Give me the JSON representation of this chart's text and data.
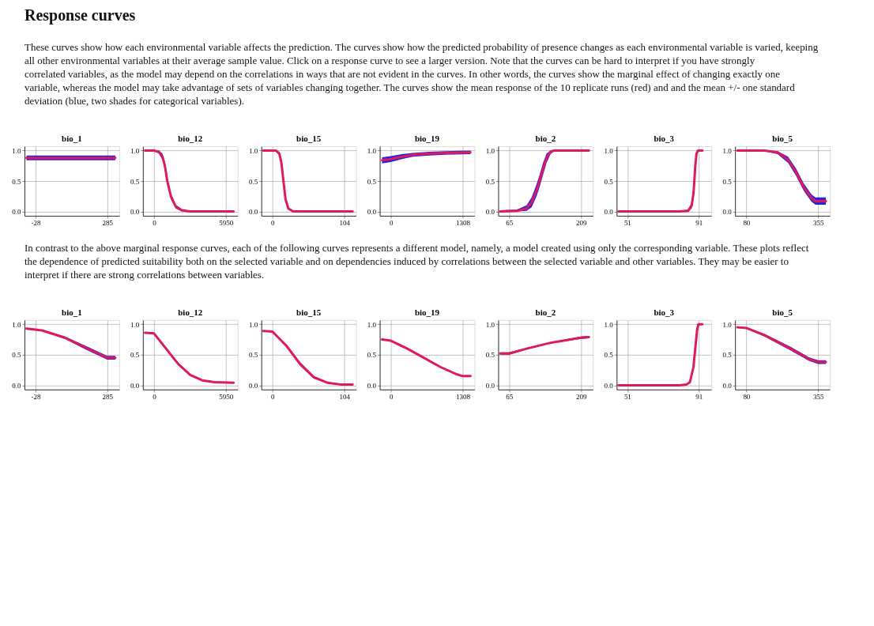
{
  "chart_data": [
    {
      "type": "other",
      "title": "Response curves",
      "annotations": [
        "These curves show how each environmental variable affects the prediction. The curves show how the predicted probability of presence changes as each environmental variable is varied, keeping all other environmental variables at their average sample value. Click on a response curve to see a larger version. Note that the curves can be hard to interpret if you have strongly correlated variables, as the model may depend on the correlations in ways that are not evident in the curves. In other words, the curves show the marginal effect of changing exactly one variable, whereas the model may take advantage of sets of variables changing together. The curves show the mean response of the 10 replicate runs (red) and and the mean +/- one standard deviation (blue, two shades for categorical variables)."
      ]
    },
    {
      "type": "line",
      "title": "bio_1",
      "xlim": [
        -76,
        337
      ],
      "xticks": [
        -28,
        285
      ],
      "ylim": [
        -0.07,
        1.07
      ],
      "yticks": [
        {
          "value": 0,
          "label": "0.0"
        },
        {
          "value": 0.5,
          "label": "0.5"
        },
        {
          "value": 1,
          "label": "1.0"
        }
      ],
      "grid": true,
      "series": [
        {
          "color": "#e0195a",
          "x": [
            -67,
            0,
            100,
            200,
            285,
            320
          ],
          "values": [
            0.88,
            0.88,
            0.88,
            0.88,
            0.88,
            0.88
          ],
          "lower": [
            0.84,
            0.84,
            0.84,
            0.84,
            0.84,
            0.84
          ],
          "upper": [
            0.92,
            0.92,
            0.92,
            0.92,
            0.92,
            0.92
          ]
        }
      ]
    },
    {
      "type": "line",
      "title": "bio_12",
      "xlim": [
        -920,
        6930
      ],
      "xticks": [
        0,
        5950
      ],
      "ylim": [
        -0.07,
        1.07
      ],
      "yticks": [
        {
          "value": 0,
          "label": "0.0"
        },
        {
          "value": 0.5,
          "label": "0.5"
        },
        {
          "value": 1,
          "label": "1.0"
        }
      ],
      "grid": true,
      "series": [
        {
          "color": "#e0195a",
          "x": [
            -740,
            0,
            400,
            700,
            900,
            1100,
            1400,
            1800,
            2300,
            3000,
            6600
          ],
          "values": [
            1.0,
            1.0,
            0.98,
            0.9,
            0.75,
            0.5,
            0.25,
            0.08,
            0.02,
            0.0,
            0.0
          ],
          "lower": [
            0.99,
            0.99,
            0.95,
            0.85,
            0.69,
            0.44,
            0.2,
            0.05,
            0.0,
            0.0,
            0.0
          ],
          "upper": [
            1.0,
            1.0,
            1.0,
            0.95,
            0.81,
            0.56,
            0.3,
            0.11,
            0.04,
            0.01,
            0.01
          ]
        }
      ]
    },
    {
      "type": "line",
      "title": "bio_15",
      "xlim": [
        -16,
        121
      ],
      "xticks": [
        0,
        104
      ],
      "ylim": [
        -0.07,
        1.07
      ],
      "yticks": [
        {
          "value": 0,
          "label": "0.0"
        },
        {
          "value": 0.5,
          "label": "0.5"
        },
        {
          "value": 1,
          "label": "1.0"
        }
      ],
      "grid": true,
      "series": [
        {
          "color": "#e0195a",
          "x": [
            -13,
            5,
            10,
            13,
            16,
            19,
            23,
            30,
            116
          ],
          "values": [
            1.0,
            1.0,
            0.95,
            0.8,
            0.5,
            0.2,
            0.05,
            0.0,
            0.0
          ],
          "lower": [
            0.99,
            0.99,
            0.92,
            0.75,
            0.45,
            0.16,
            0.03,
            0.0,
            0.0
          ],
          "upper": [
            1.0,
            1.0,
            0.98,
            0.85,
            0.55,
            0.24,
            0.07,
            0.01,
            0.01
          ]
        }
      ]
    },
    {
      "type": "line",
      "title": "bio_19",
      "xlim": [
        -203,
        1524
      ],
      "xticks": [
        0,
        1308
      ],
      "ylim": [
        -0.07,
        1.07
      ],
      "yticks": [
        {
          "value": 0,
          "label": "0.0"
        },
        {
          "value": 0.5,
          "label": "0.5"
        },
        {
          "value": 1,
          "label": "1.0"
        }
      ],
      "grid": true,
      "series": [
        {
          "color": "#e0195a",
          "x": [
            -160,
            0,
            200,
            400,
            700,
            1000,
            1450
          ],
          "values": [
            0.84,
            0.86,
            0.9,
            0.93,
            0.95,
            0.96,
            0.97
          ],
          "lower": [
            0.79,
            0.81,
            0.86,
            0.9,
            0.92,
            0.93,
            0.94
          ],
          "upper": [
            0.89,
            0.91,
            0.94,
            0.96,
            0.98,
            0.99,
            1.0
          ]
        }
      ]
    },
    {
      "type": "line",
      "title": "bio_2",
      "xlim": [
        43,
        233
      ],
      "xticks": [
        65,
        209
      ],
      "ylim": [
        -0.07,
        1.07
      ],
      "yticks": [
        {
          "value": 0,
          "label": "0.0"
        },
        {
          "value": 0.5,
          "label": "0.5"
        },
        {
          "value": 1,
          "label": "1.0"
        }
      ],
      "grid": true,
      "series": [
        {
          "color": "#e0195a",
          "x": [
            47,
            80,
            100,
            110,
            120,
            126,
            133,
            140,
            148,
            155,
            225
          ],
          "values": [
            0.0,
            0.01,
            0.05,
            0.15,
            0.35,
            0.5,
            0.7,
            0.88,
            0.98,
            1.0,
            1.0
          ],
          "lower": [
            0.0,
            0.0,
            0.01,
            0.07,
            0.25,
            0.4,
            0.6,
            0.8,
            0.94,
            0.99,
            0.99
          ],
          "upper": [
            0.02,
            0.03,
            0.1,
            0.23,
            0.45,
            0.6,
            0.8,
            0.95,
            1.0,
            1.0,
            1.0
          ]
        }
      ]
    },
    {
      "type": "line",
      "title": "bio_3",
      "xlim": [
        45,
        98
      ],
      "xticks": [
        51,
        91
      ],
      "ylim": [
        -0.07,
        1.07
      ],
      "yticks": [
        {
          "value": 0,
          "label": "0.0"
        },
        {
          "value": 0.5,
          "label": "0.5"
        },
        {
          "value": 1,
          "label": "1.0"
        }
      ],
      "grid": true,
      "series": [
        {
          "color": "#e0195a",
          "x": [
            46,
            80,
            85,
            87,
            88,
            88.5,
            89,
            89.7,
            90.5,
            93
          ],
          "values": [
            0.0,
            0.0,
            0.01,
            0.1,
            0.3,
            0.5,
            0.75,
            0.95,
            1.0,
            1.0
          ],
          "lower": [
            0.0,
            0.0,
            0.0,
            0.05,
            0.2,
            0.4,
            0.65,
            0.9,
            0.99,
            0.99
          ],
          "upper": [
            0.01,
            0.01,
            0.03,
            0.15,
            0.4,
            0.6,
            0.85,
            0.99,
            1.0,
            1.0
          ]
        }
      ]
    },
    {
      "type": "line",
      "title": "bio_5",
      "xlim": [
        37,
        400
      ],
      "xticks": [
        80,
        355
      ],
      "ylim": [
        -0.07,
        1.07
      ],
      "yticks": [
        {
          "value": 0,
          "label": "0.0"
        },
        {
          "value": 0.5,
          "label": "0.5"
        },
        {
          "value": 1,
          "label": "1.0"
        }
      ],
      "grid": true,
      "series": [
        {
          "color": "#e0195a",
          "x": [
            46,
            150,
            200,
            240,
            270,
            300,
            330,
            345,
            385
          ],
          "values": [
            1.0,
            1.0,
            0.97,
            0.85,
            0.65,
            0.4,
            0.22,
            0.17,
            0.17
          ],
          "lower": [
            0.99,
            0.99,
            0.94,
            0.8,
            0.59,
            0.34,
            0.16,
            0.11,
            0.11
          ],
          "upper": [
            1.0,
            1.0,
            0.99,
            0.9,
            0.71,
            0.46,
            0.28,
            0.23,
            0.23
          ]
        }
      ]
    },
    {
      "type": "other",
      "annotations": [
        "In contrast to the above marginal response curves, each of the following curves represents a different model, namely, a model created using only the corresponding variable. These plots reflect the dependence of predicted suitability both on the selected variable and on dependencies induced by correlations between the selected variable and other variables. They may be easier to interpret if there are strong correlations between variables."
      ]
    },
    {
      "type": "line",
      "title": "bio_1",
      "xlim": [
        -76,
        337
      ],
      "xticks": [
        -28,
        285
      ],
      "ylim": [
        -0.07,
        1.07
      ],
      "yticks": [
        {
          "value": 0,
          "label": "0.0"
        },
        {
          "value": 0.5,
          "label": "0.5"
        },
        {
          "value": 1,
          "label": "1.0"
        }
      ],
      "grid": true,
      "series": [
        {
          "color": "#e0195a",
          "x": [
            -67,
            0,
            100,
            200,
            285,
            320
          ],
          "values": [
            0.93,
            0.9,
            0.78,
            0.6,
            0.45,
            0.45
          ],
          "lower": [
            0.92,
            0.89,
            0.76,
            0.57,
            0.42,
            0.42
          ],
          "upper": [
            0.94,
            0.91,
            0.8,
            0.63,
            0.48,
            0.48
          ]
        }
      ]
    },
    {
      "type": "line",
      "title": "bio_12",
      "xlim": [
        -920,
        6930
      ],
      "xticks": [
        0,
        5950
      ],
      "ylim": [
        -0.07,
        1.07
      ],
      "yticks": [
        {
          "value": 0,
          "label": "0.0"
        },
        {
          "value": 0.5,
          "label": "0.5"
        },
        {
          "value": 1,
          "label": "1.0"
        }
      ],
      "grid": true,
      "series": [
        {
          "color": "#e0195a",
          "x": [
            -740,
            0,
            1000,
            2000,
            3000,
            4000,
            5000,
            6600
          ],
          "values": [
            0.86,
            0.85,
            0.6,
            0.35,
            0.17,
            0.08,
            0.05,
            0.04
          ],
          "lower": [
            0.85,
            0.84,
            0.58,
            0.33,
            0.16,
            0.07,
            0.04,
            0.03
          ],
          "upper": [
            0.87,
            0.86,
            0.62,
            0.37,
            0.18,
            0.09,
            0.06,
            0.05
          ]
        }
      ]
    },
    {
      "type": "line",
      "title": "bio_15",
      "xlim": [
        -16,
        121
      ],
      "xticks": [
        0,
        104
      ],
      "ylim": [
        -0.07,
        1.07
      ],
      "yticks": [
        {
          "value": 0,
          "label": "0.0"
        },
        {
          "value": 0.5,
          "label": "0.5"
        },
        {
          "value": 1,
          "label": "1.0"
        }
      ],
      "grid": true,
      "series": [
        {
          "color": "#e0195a",
          "x": [
            -13,
            0,
            20,
            40,
            60,
            80,
            100,
            116
          ],
          "values": [
            0.89,
            0.88,
            0.65,
            0.35,
            0.13,
            0.04,
            0.01,
            0.01
          ],
          "lower": [
            0.88,
            0.87,
            0.63,
            0.32,
            0.11,
            0.03,
            0.0,
            0.0
          ],
          "upper": [
            0.9,
            0.89,
            0.67,
            0.38,
            0.15,
            0.05,
            0.02,
            0.02
          ]
        }
      ]
    },
    {
      "type": "line",
      "title": "bio_19",
      "xlim": [
        -203,
        1524
      ],
      "xticks": [
        0,
        1308
      ],
      "ylim": [
        -0.07,
        1.07
      ],
      "yticks": [
        {
          "value": 0,
          "label": "0.0"
        },
        {
          "value": 0.5,
          "label": "0.5"
        },
        {
          "value": 1,
          "label": "1.0"
        }
      ],
      "grid": true,
      "series": [
        {
          "color": "#e0195a",
          "x": [
            -160,
            0,
            300,
            600,
            900,
            1200,
            1308,
            1450
          ],
          "values": [
            0.75,
            0.73,
            0.6,
            0.45,
            0.3,
            0.18,
            0.15,
            0.15
          ]
        }
      ]
    },
    {
      "type": "line",
      "title": "bio_2",
      "xlim": [
        43,
        233
      ],
      "xticks": [
        65,
        209
      ],
      "ylim": [
        -0.07,
        1.07
      ],
      "yticks": [
        {
          "value": 0,
          "label": "0.0"
        },
        {
          "value": 0.5,
          "label": "0.5"
        },
        {
          "value": 1,
          "label": "1.0"
        }
      ],
      "grid": true,
      "series": [
        {
          "color": "#e0195a",
          "x": [
            47,
            65,
            100,
            150,
            209,
            225
          ],
          "values": [
            0.52,
            0.52,
            0.6,
            0.7,
            0.78,
            0.79
          ],
          "lower": [
            0.5,
            0.5,
            0.59,
            0.69,
            0.76,
            0.77
          ],
          "upper": [
            0.54,
            0.54,
            0.61,
            0.71,
            0.8,
            0.81
          ]
        }
      ]
    },
    {
      "type": "line",
      "title": "bio_3",
      "xlim": [
        45,
        98
      ],
      "xticks": [
        51,
        91
      ],
      "ylim": [
        -0.07,
        1.07
      ],
      "yticks": [
        {
          "value": 0,
          "label": "0.0"
        },
        {
          "value": 0.5,
          "label": "0.5"
        },
        {
          "value": 1,
          "label": "1.0"
        }
      ],
      "grid": true,
      "series": [
        {
          "color": "#e0195a",
          "x": [
            46,
            80,
            84,
            86,
            88,
            89,
            90,
            90.7,
            93
          ],
          "values": [
            0.0,
            0.0,
            0.01,
            0.05,
            0.3,
            0.6,
            0.9,
            1.0,
            1.0
          ],
          "lower": [
            0.0,
            0.0,
            0.0,
            0.03,
            0.25,
            0.55,
            0.86,
            0.99,
            0.99
          ],
          "upper": [
            0.01,
            0.01,
            0.02,
            0.07,
            0.35,
            0.65,
            0.94,
            1.0,
            1.0
          ]
        }
      ]
    },
    {
      "type": "line",
      "title": "bio_5",
      "xlim": [
        37,
        400
      ],
      "xticks": [
        80,
        355
      ],
      "ylim": [
        -0.07,
        1.07
      ],
      "yticks": [
        {
          "value": 0,
          "label": "0.0"
        },
        {
          "value": 0.5,
          "label": "0.5"
        },
        {
          "value": 1,
          "label": "1.0"
        }
      ],
      "grid": true,
      "series": [
        {
          "color": "#e0195a",
          "x": [
            46,
            80,
            150,
            250,
            320,
            355,
            385
          ],
          "values": [
            0.95,
            0.94,
            0.82,
            0.6,
            0.43,
            0.38,
            0.38
          ],
          "lower": [
            0.94,
            0.93,
            0.8,
            0.57,
            0.4,
            0.35,
            0.35
          ],
          "upper": [
            0.96,
            0.95,
            0.84,
            0.63,
            0.46,
            0.41,
            0.41
          ]
        }
      ]
    }
  ]
}
